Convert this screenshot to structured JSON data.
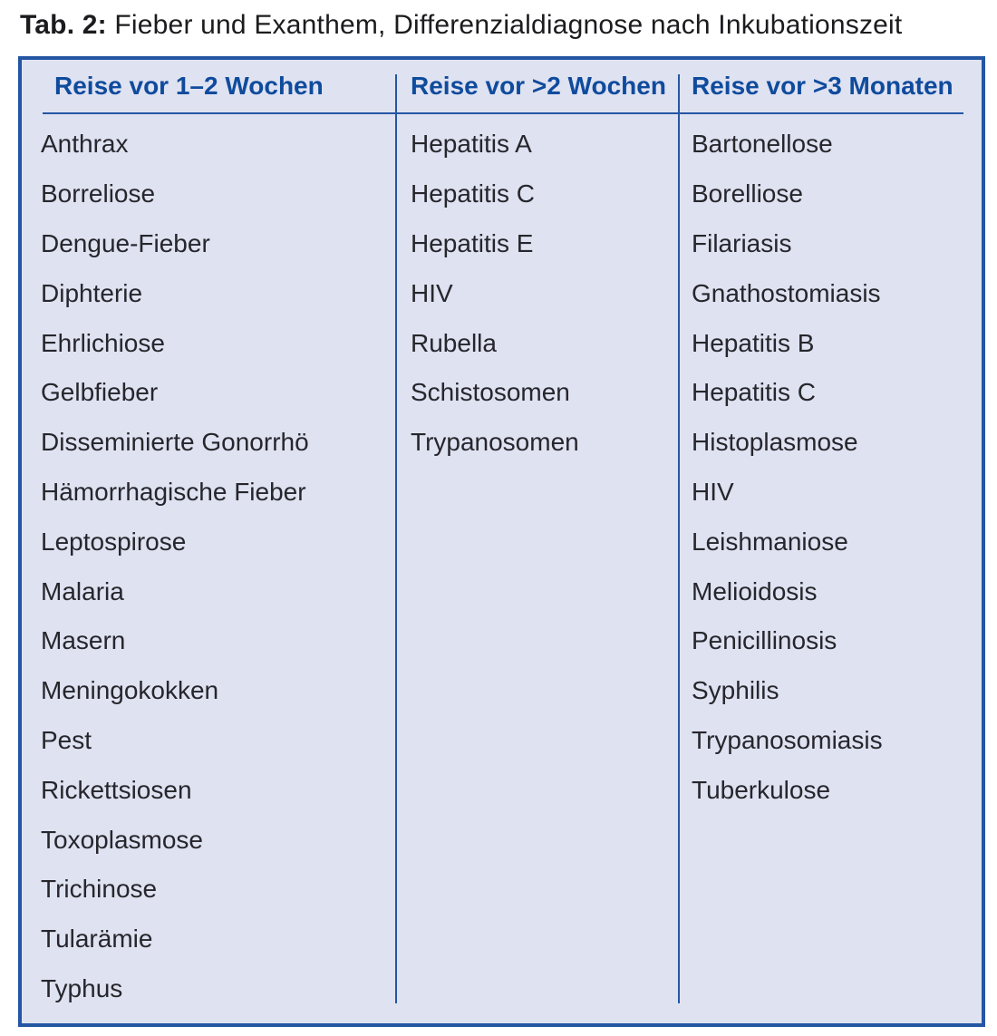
{
  "title": {
    "label": "Tab. 2:",
    "text": " Fieber und Exanthem, Differenzialdiagnose nach Inkubationszeit"
  },
  "table": {
    "columns": [
      {
        "header": "Reise vor 1–2 Wochen",
        "items": [
          "Anthrax",
          "Borreliose",
          "Dengue-Fieber",
          "Diphterie",
          "Ehrlichiose",
          "Gelbfieber",
          "Disseminierte Gonorrhö",
          "Hämorrhagische Fieber",
          "Leptospirose",
          "Malaria",
          "Masern",
          "Meningokokken",
          "Pest",
          "Rickettsiosen",
          "Toxoplasmose",
          "Trichinose",
          "Tularämie",
          "Typhus"
        ]
      },
      {
        "header": "Reise vor >2 Wochen",
        "items": [
          "Hepatitis A",
          "Hepatitis C",
          "Hepatitis E",
          "HIV",
          "Rubella",
          "Schistosomen",
          "Trypanosomen"
        ]
      },
      {
        "header": "Reise vor >3 Monaten",
        "items": [
          "Bartonellose",
          "Borelliose",
          "Filariasis",
          "Gnathostomiasis",
          "Hepatitis B",
          "Hepatitis C",
          "Histoplasmose",
          "HIV",
          "Leishmaniose",
          "Melioidosis",
          "Penicillinosis",
          "Syphilis",
          "Trypanosomiasis",
          "Tuberkulose"
        ]
      }
    ]
  },
  "chart_data": {
    "type": "table",
    "title": "Tab. 2: Fieber und Exanthem, Differenzialdiagnose nach Inkubationszeit",
    "columns": [
      "Reise vor 1–2 Wochen",
      "Reise vor >2 Wochen",
      "Reise vor >3 Monaten"
    ],
    "rows": [
      [
        "Anthrax",
        "Hepatitis A",
        "Bartonellose"
      ],
      [
        "Borreliose",
        "Hepatitis C",
        "Borelliose"
      ],
      [
        "Dengue-Fieber",
        "Hepatitis E",
        "Filariasis"
      ],
      [
        "Diphterie",
        "HIV",
        "Gnathostomiasis"
      ],
      [
        "Ehrlichiose",
        "Rubella",
        "Hepatitis B"
      ],
      [
        "Gelbfieber",
        "Schistosomen",
        "Hepatitis C"
      ],
      [
        "Disseminierte Gonorrhö",
        "Trypanosomen",
        "Histoplasmose"
      ],
      [
        "Hämorrhagische Fieber",
        "",
        "HIV"
      ],
      [
        "Leptospirose",
        "",
        "Leishmaniose"
      ],
      [
        "Malaria",
        "",
        "Melioidosis"
      ],
      [
        "Masern",
        "",
        "Penicillinosis"
      ],
      [
        "Meningokokken",
        "",
        "Syphilis"
      ],
      [
        "Pest",
        "",
        "Trypanosomiasis"
      ],
      [
        "Rickettsiosen",
        "",
        "Tuberkulose"
      ],
      [
        "Toxoplasmose",
        "",
        ""
      ],
      [
        "Trichinose",
        "",
        ""
      ],
      [
        "Tularämie",
        "",
        ""
      ],
      [
        "Typhus",
        "",
        ""
      ]
    ]
  },
  "colors": {
    "accent_blue": "#2456a4",
    "header_text": "#0f4b9d",
    "body_text": "#26262c",
    "table_background": "#dfe2f1",
    "page_background": "#ffffff",
    "title_text": "#1c1c1f"
  }
}
